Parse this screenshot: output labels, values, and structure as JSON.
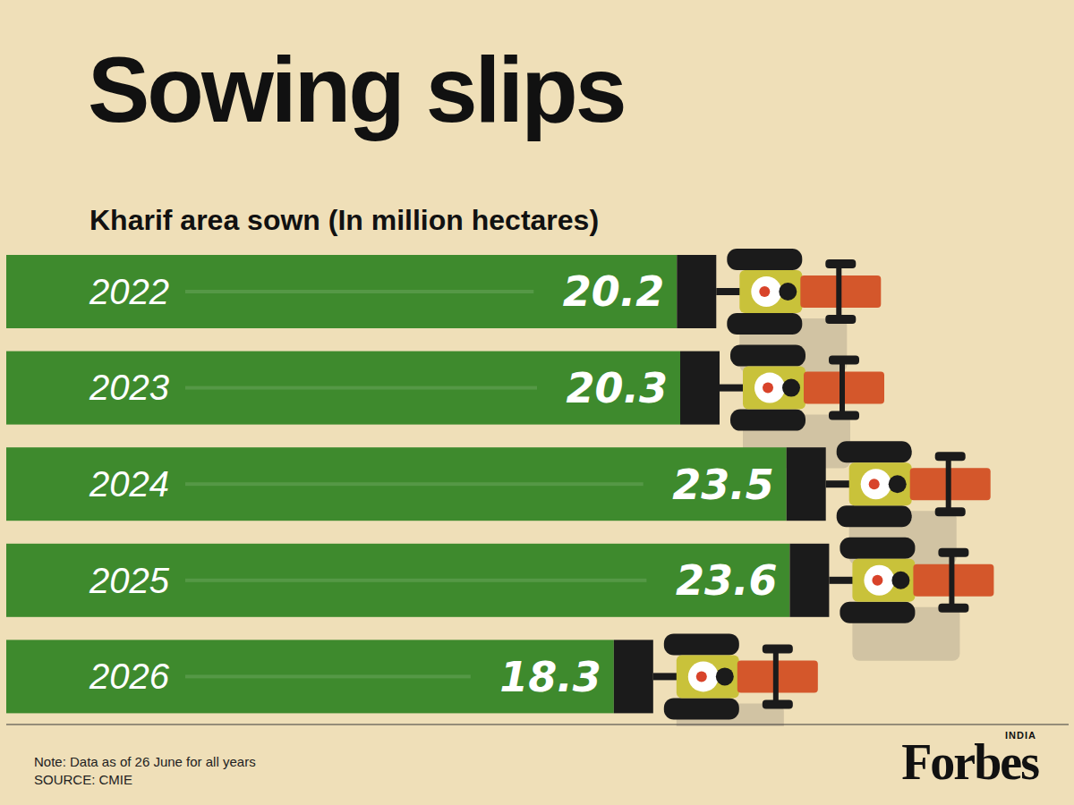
{
  "chart_data": {
    "type": "bar",
    "orientation": "horizontal",
    "title": "Sowing slips",
    "subtitle": "Kharif area sown (In million hectares)",
    "categories": [
      "2022",
      "2023",
      "2024",
      "2025",
      "2026"
    ],
    "values": [
      20.2,
      20.3,
      23.5,
      23.6,
      18.3
    ],
    "color": "#3e8a2d",
    "xlim": [
      0,
      32
    ],
    "tick_labels": "y",
    "data_labels": true,
    "note": "Note: Data as of 26 June for all years",
    "source": "SOURCE: CMIE",
    "logo": "Forbes",
    "logo_sub": "INDIA"
  }
}
